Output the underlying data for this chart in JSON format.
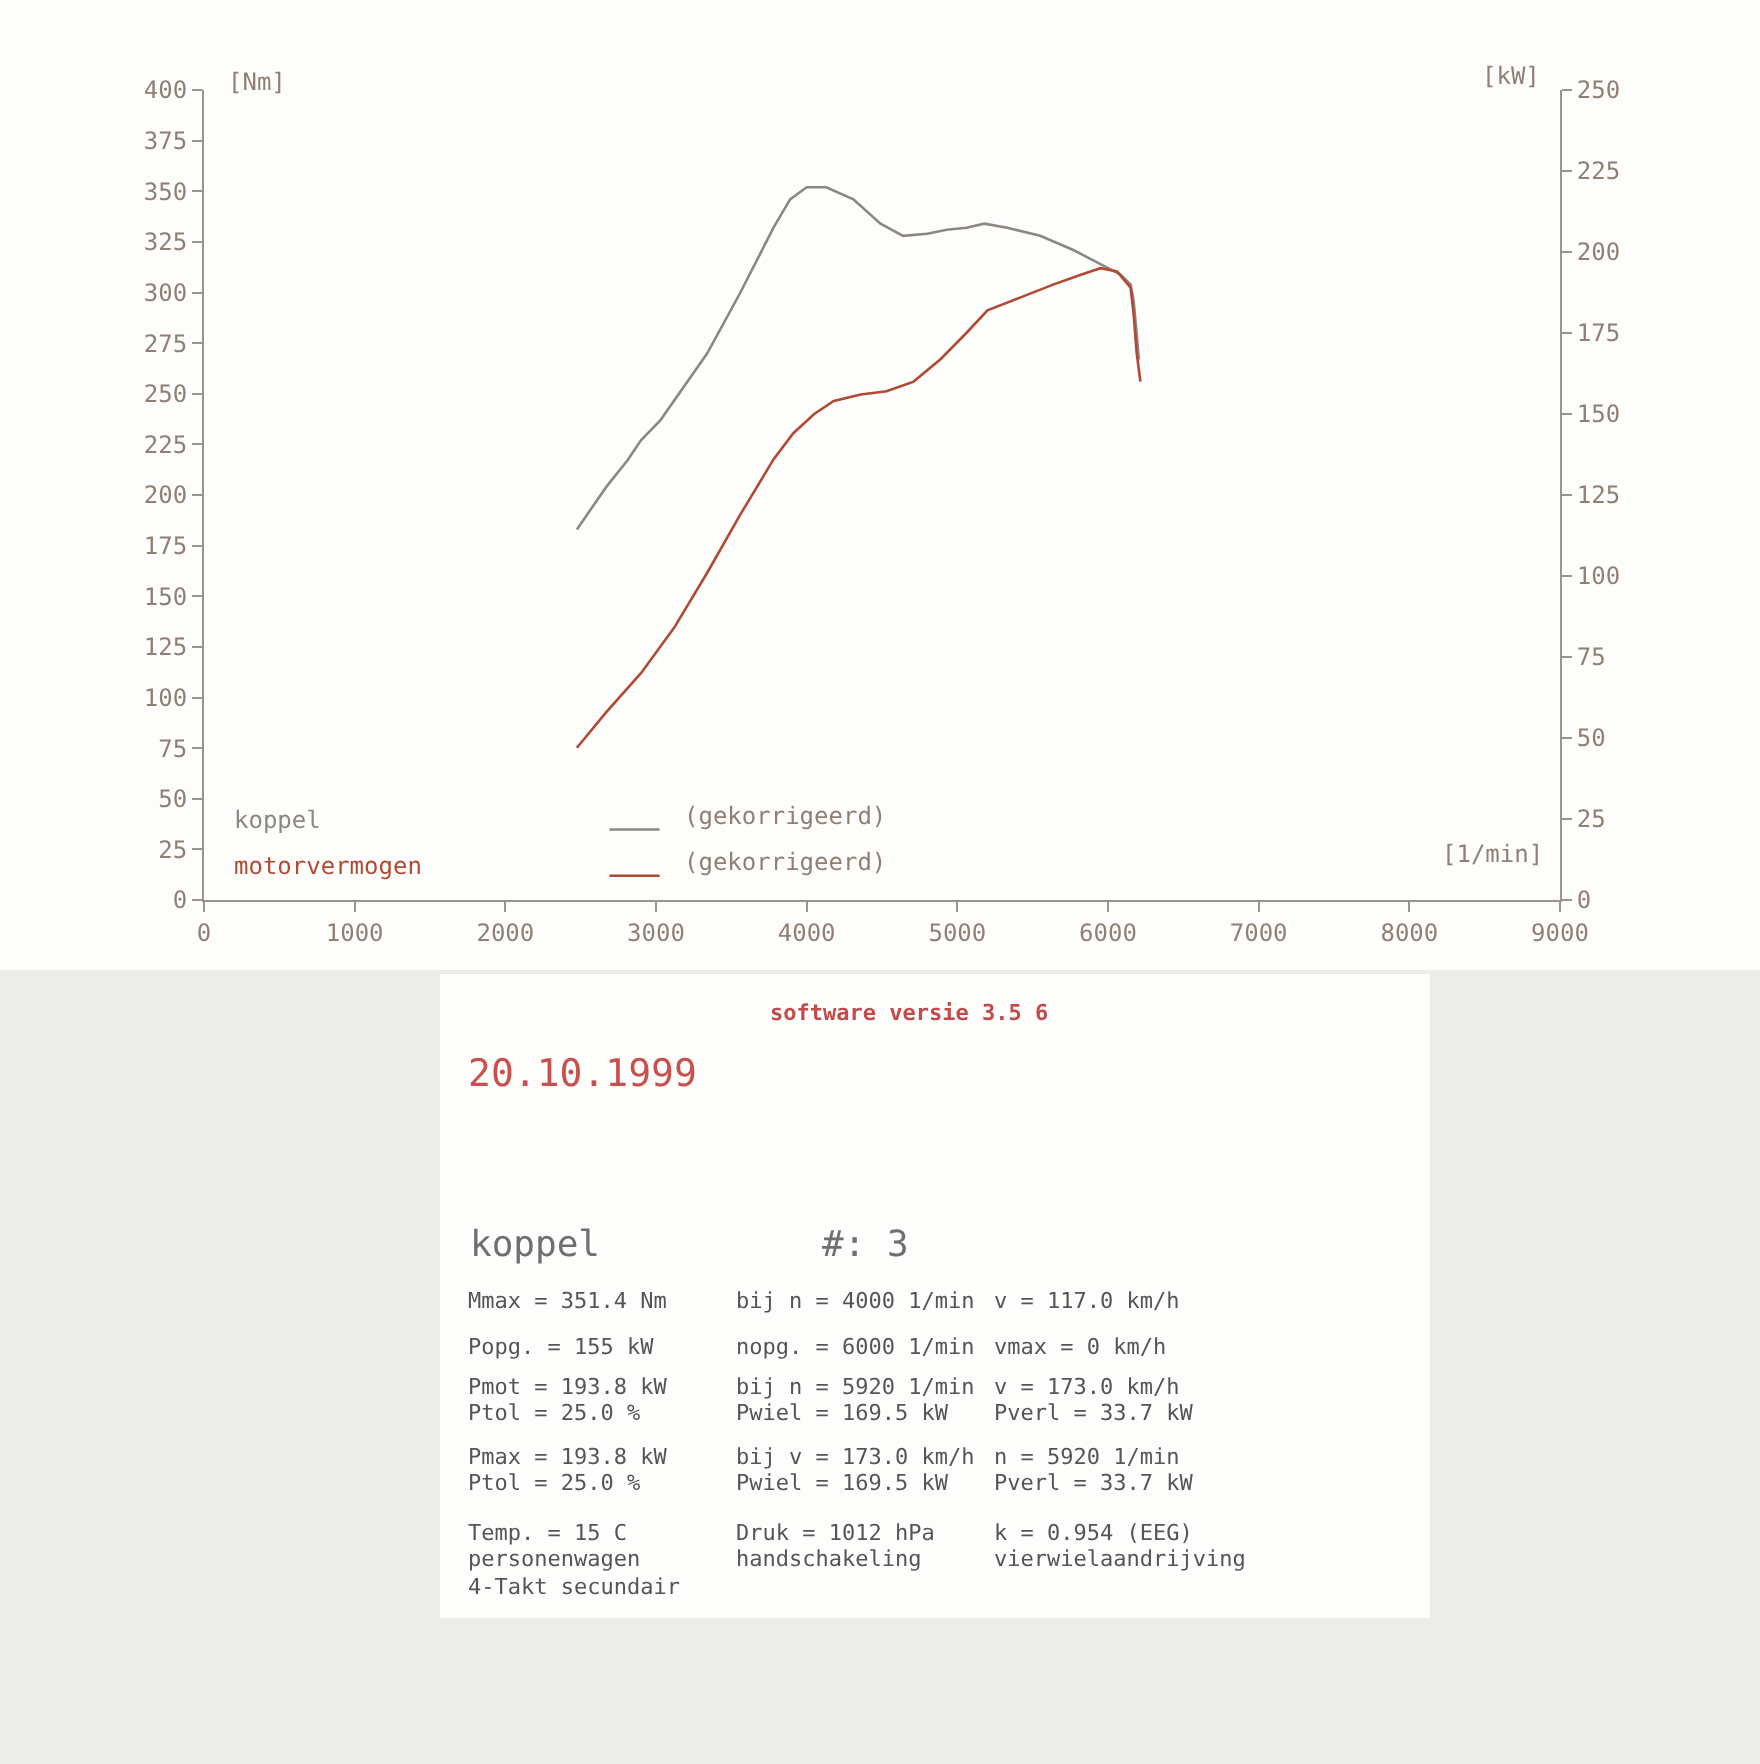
{
  "chart_data": [
    {
      "type": "line",
      "xlabel": "[1/min]",
      "ylabel": "[Nm]",
      "y2label": "[kW]",
      "xlim": [
        0,
        9000
      ],
      "xticks": [
        0,
        1000,
        2000,
        3000,
        4000,
        5000,
        6000,
        7000,
        8000,
        9000
      ],
      "ylim": [
        0,
        400
      ],
      "yticks": [
        0,
        25,
        50,
        75,
        100,
        125,
        150,
        175,
        200,
        225,
        250,
        275,
        300,
        325,
        350,
        375,
        400
      ],
      "y2lim": [
        0,
        250
      ],
      "y2ticks": [
        0,
        25,
        50,
        75,
        100,
        125,
        150,
        175,
        200,
        225,
        250
      ],
      "legend": "bottom left",
      "annotations": [
        "(gekorrigeerd)",
        "(gekorrigeerd)"
      ],
      "series": [
        {
          "name": "koppel",
          "color": "#8c8784",
          "x": [
            2475,
            2670,
            2810,
            2900,
            3030,
            3340,
            3560,
            3780,
            3890,
            4000,
            4130,
            4310,
            4490,
            4640,
            4800,
            4930,
            5060,
            5180,
            5330,
            5550,
            5770,
            5950,
            6080,
            6150,
            6170,
            6190,
            6205
          ],
          "values": [
            183,
            204,
            217,
            227,
            237,
            270,
            300,
            332,
            346,
            352,
            352,
            346,
            334,
            328,
            329,
            331,
            332,
            334,
            332,
            328,
            321,
            314,
            309,
            304,
            296,
            280,
            267
          ]
        },
        {
          "name": "motorvermogen",
          "color": "#b04a32",
          "axis": "y2",
          "x": [
            2475,
            2670,
            2900,
            3120,
            3340,
            3560,
            3780,
            3910,
            4050,
            4180,
            4360,
            4530,
            4710,
            4890,
            5060,
            5200,
            5420,
            5640,
            5820,
            5950,
            6060,
            6150,
            6170,
            6190,
            6215
          ],
          "values": [
            47,
            58,
            70,
            84,
            101,
            119,
            136,
            144,
            150,
            154,
            156,
            157,
            160,
            167,
            175,
            182,
            186,
            190,
            193,
            195,
            194,
            189,
            181,
            169,
            160
          ]
        }
      ]
    },
    {
      "type": "other",
      "title": "software versie 3.5 6",
      "subtitle": "20.10.1999",
      "annotations": [
        "koppel",
        "#: 3",
        "Mmax = 351.4 Nm",
        "bij n = 4000 1/min",
        "v = 117.0 km/h",
        "Popg. = 155 kW",
        "nopg. = 6000 1/min",
        "vmax = 0 km/h",
        "Pmot = 193.8 kW",
        "bij n = 5920 1/min",
        "v = 173.0 km/h",
        "Ptol = 25.0 %",
        "Pwiel = 169.5 kW",
        "Pverl = 33.7 kW",
        "Pmax = 193.8 kW",
        "bij v = 173.0 km/h",
        "n = 5920 1/min",
        "Ptol = 25.0 %",
        "Pwiel = 169.5 kW",
        "Pverl = 33.7 kW",
        "Temp. = 15 C",
        "Druk = 1012 hPa",
        "k = 0.954 (EEG)",
        "personenwagen",
        "handschakeling",
        "vierwielaandrijving",
        "4-Takt secundair"
      ]
    }
  ]
}
